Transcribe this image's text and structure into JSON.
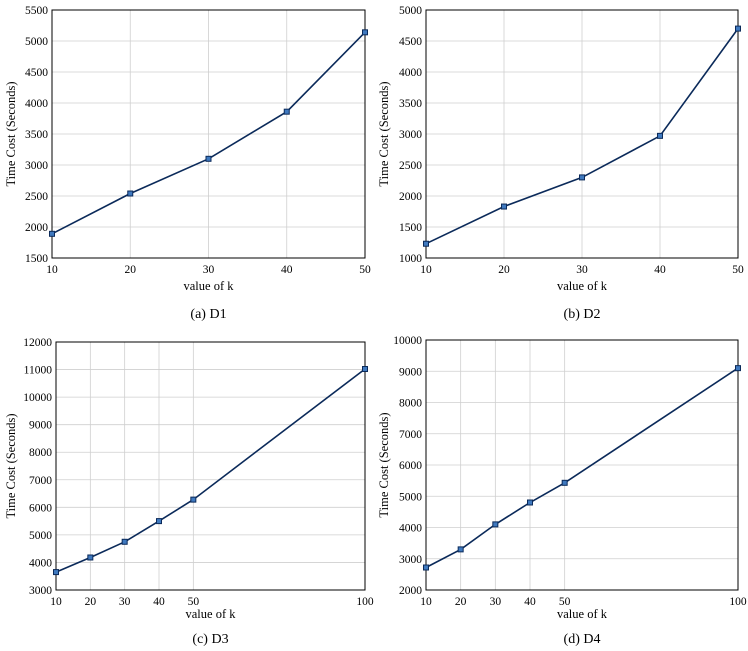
{
  "chart_data": [
    {
      "type": "line",
      "caption": "(a) D1",
      "xlabel": "value of k",
      "ylabel": "Time Cost (Seconds)",
      "x": [
        10,
        20,
        30,
        40,
        50
      ],
      "series": [
        {
          "values": [
            1890,
            2540,
            3100,
            3860,
            5140
          ]
        }
      ],
      "xlim": [
        10,
        50
      ],
      "ylim": [
        1500,
        5500
      ],
      "xticks": [
        10,
        20,
        30,
        40,
        50
      ],
      "yticks": [
        1500,
        2000,
        2500,
        3000,
        3500,
        4000,
        4500,
        5000,
        5500
      ],
      "grid": true,
      "color": "#0b2a5a",
      "marker_color": "#3f79bf"
    },
    {
      "type": "line",
      "caption": "(b) D2",
      "xlabel": "value of k",
      "ylabel": "Time Cost (Seconds)",
      "x": [
        10,
        20,
        30,
        40,
        50
      ],
      "series": [
        {
          "values": [
            1230,
            1830,
            2300,
            2970,
            4700
          ]
        }
      ],
      "xlim": [
        10,
        50
      ],
      "ylim": [
        1000,
        5000
      ],
      "xticks": [
        10,
        20,
        30,
        40,
        50
      ],
      "yticks": [
        1000,
        1500,
        2000,
        2500,
        3000,
        3500,
        4000,
        4500,
        5000
      ],
      "grid": true,
      "color": "#0b2a5a",
      "marker_color": "#3f79bf"
    },
    {
      "type": "line",
      "caption": "(c) D3",
      "xlabel": "value of k",
      "ylabel": "Time Cost (Seconds)",
      "x": [
        10,
        20,
        30,
        40,
        50,
        100
      ],
      "series": [
        {
          "values": [
            3650,
            4180,
            4750,
            5500,
            6280,
            11020
          ]
        }
      ],
      "xlim": [
        10,
        100
      ],
      "ylim": [
        3000,
        12000
      ],
      "xticks": [
        10,
        20,
        30,
        40,
        50,
        100
      ],
      "yticks": [
        3000,
        4000,
        5000,
        6000,
        7000,
        8000,
        9000,
        10000,
        11000,
        12000
      ],
      "grid": true,
      "color": "#0b2a5a",
      "marker_color": "#3f79bf"
    },
    {
      "type": "line",
      "caption": "(d) D4",
      "xlabel": "value of k",
      "ylabel": "Time Cost (Seconds)",
      "x": [
        10,
        20,
        30,
        40,
        50,
        100
      ],
      "series": [
        {
          "values": [
            2720,
            3300,
            4100,
            4800,
            5430,
            9100
          ]
        }
      ],
      "xlim": [
        10,
        100
      ],
      "ylim": [
        2000,
        10000
      ],
      "xticks": [
        10,
        20,
        30,
        40,
        50,
        100
      ],
      "yticks": [
        2000,
        3000,
        4000,
        5000,
        6000,
        7000,
        8000,
        9000,
        10000
      ],
      "grid": true,
      "color": "#0b2a5a",
      "marker_color": "#3f79bf"
    }
  ]
}
